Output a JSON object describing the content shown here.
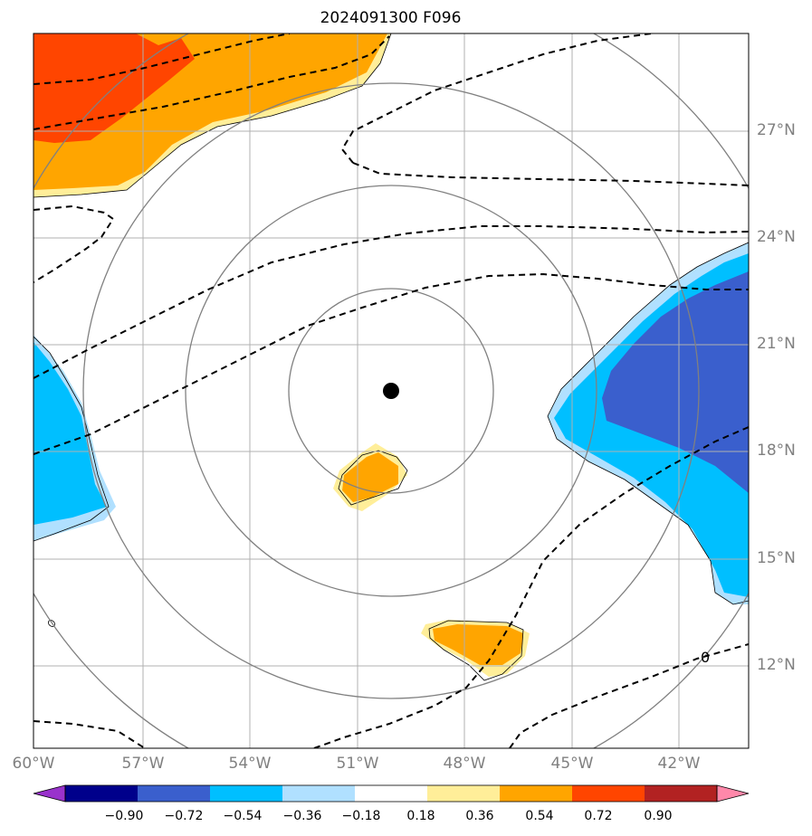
{
  "title": "2024091300 F096",
  "map": {
    "lon_range": [
      -60,
      -40
    ],
    "lat_range": [
      9.5,
      29.5
    ],
    "lat_labels": [
      "27°N",
      "24°N",
      "21°N",
      "18°N",
      "15°N",
      "12°N"
    ],
    "lat_values": [
      27,
      24,
      21,
      18,
      15,
      12
    ],
    "lon_labels": [
      "60°W",
      "57°W",
      "54°W",
      "51°W",
      "48°W",
      "45°W",
      "42°W"
    ],
    "lon_values": [
      -60,
      -57,
      -54,
      -51,
      -48,
      -45,
      -42
    ],
    "center_marker": {
      "lon": -50,
      "lat": 19.7,
      "symbol": "storm-center-dot"
    },
    "range_rings": "4 concentric circles around center",
    "zero_contour_label": "0",
    "colors": {
      "positive_low": "#ffee99",
      "positive_mid": "#ffa500",
      "positive_high": "#ff4500",
      "negative_low": "#b0e0ff",
      "negative_mid": "#00bfff",
      "negative_high": "#3a5fcd",
      "grid": "#b0b0b0",
      "ring": "#808080"
    }
  },
  "colorbar": {
    "ticks": [
      "−0.90",
      "−0.72",
      "−0.54",
      "−0.36",
      "−0.18",
      "0.18",
      "0.36",
      "0.54",
      "0.72",
      "0.90"
    ],
    "colors": [
      "#9932cc",
      "#00008b",
      "#3a5fcd",
      "#00bfff",
      "#b0e0ff",
      "#ffffff",
      "#ffee99",
      "#ffa500",
      "#ff4500",
      "#b22222",
      "#ff88aa"
    ]
  }
}
